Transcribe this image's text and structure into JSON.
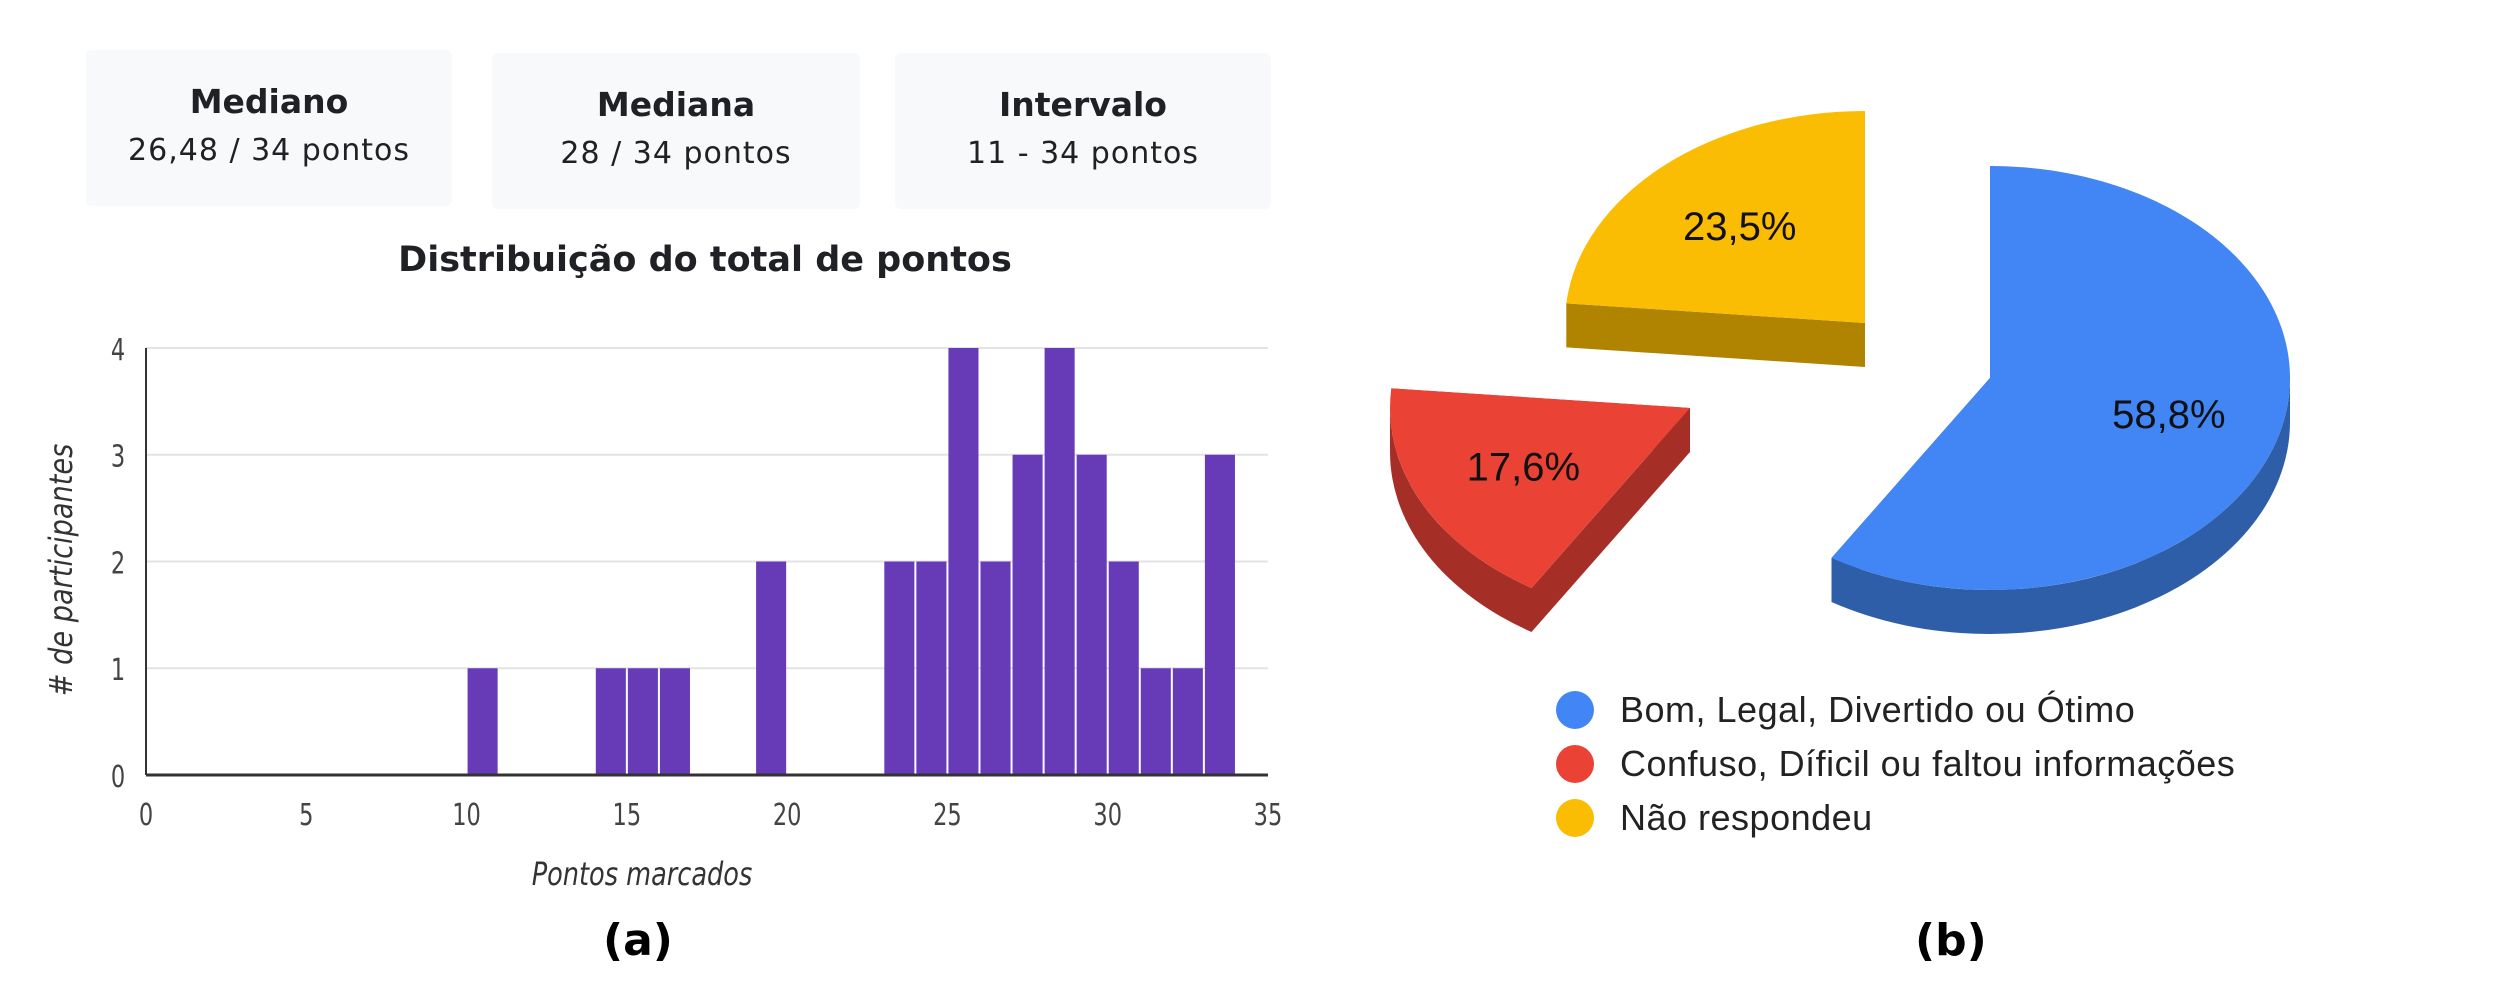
{
  "stats": [
    {
      "title": "Mediano",
      "value": "26,48 / 34 pontos"
    },
    {
      "title": "Mediana",
      "value": "28 / 34 pontos"
    },
    {
      "title": "Intervalo",
      "value": "11 - 34 pontos"
    }
  ],
  "panel_labels": {
    "a": "(a)",
    "b": "(b)"
  },
  "chart_data": [
    {
      "type": "bar",
      "title": "Distribuição do total de pontos",
      "xlabel": "Pontos marcados",
      "ylabel": "# de participantes",
      "xlim": [
        0,
        35
      ],
      "ylim": [
        0,
        4
      ],
      "x_ticks": [
        "0",
        "5",
        "10",
        "15",
        "20",
        "25",
        "30",
        "35"
      ],
      "y_ticks": [
        "0",
        "1",
        "2",
        "3",
        "4"
      ],
      "grid": true,
      "color": "#673ab7",
      "bins": [
        {
          "x": 11,
          "count": 1
        },
        {
          "x": 15,
          "count": 1
        },
        {
          "x": 16,
          "count": 1
        },
        {
          "x": 17,
          "count": 1
        },
        {
          "x": 20,
          "count": 2
        },
        {
          "x": 24,
          "count": 2
        },
        {
          "x": 25,
          "count": 2
        },
        {
          "x": 26,
          "count": 4
        },
        {
          "x": 27,
          "count": 2
        },
        {
          "x": 28,
          "count": 3
        },
        {
          "x": 29,
          "count": 4
        },
        {
          "x": 30,
          "count": 3
        },
        {
          "x": 31,
          "count": 2
        },
        {
          "x": 32,
          "count": 1
        },
        {
          "x": 33,
          "count": 1
        },
        {
          "x": 34,
          "count": 3
        }
      ]
    },
    {
      "type": "pie",
      "style": "3d-exploded",
      "legend_position": "bottom",
      "slices": [
        {
          "label": "Bom, Legal, Divertido ou Ótimo",
          "value": 58.8,
          "value_label": "58,8%",
          "color": "#4285f4",
          "dark": "#2f5ea8"
        },
        {
          "label": "Confuso, Díficil ou faltou informações",
          "value": 17.6,
          "value_label": "17,6%",
          "color": "#ea4335",
          "dark": "#a52f26"
        },
        {
          "label": "Não respondeu",
          "value": 23.5,
          "value_label": "23,5%",
          "color": "#fbbc04",
          "dark": "#b08400"
        }
      ]
    }
  ]
}
